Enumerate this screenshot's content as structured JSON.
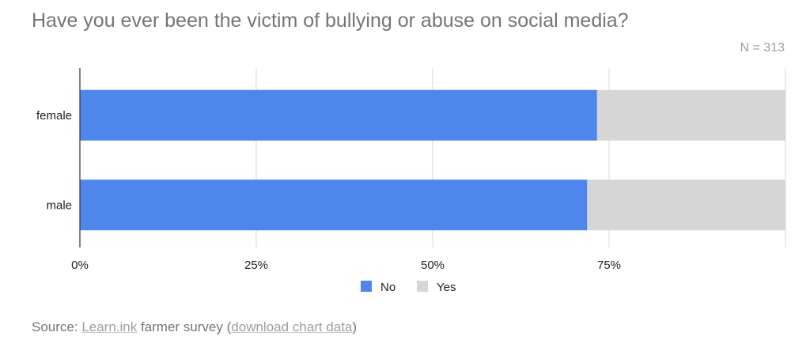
{
  "chart_data": {
    "type": "bar",
    "orientation": "horizontal",
    "stacked": true,
    "title": "Have you ever been the victim of bullying or abuse on social media?",
    "note": "N = 313",
    "categories": [
      "female",
      "male"
    ],
    "series": [
      {
        "name": "No",
        "color": "#4f86ec",
        "values": [
          73.3,
          71.9
        ]
      },
      {
        "name": "Yes",
        "color": "#d6d6d6",
        "values": [
          26.7,
          28.1
        ]
      }
    ],
    "xlim": [
      0,
      100
    ],
    "xticks": [
      "0%",
      "25%",
      "50%",
      "75%"
    ],
    "xtick_values": [
      0,
      25,
      50,
      75
    ],
    "grid": true,
    "legend_position": "bottom"
  },
  "source": {
    "prefix": "Source: ",
    "link1": "Learn.ink",
    "middle": " farmer survey (",
    "link2": "download chart data",
    "suffix": ")"
  }
}
